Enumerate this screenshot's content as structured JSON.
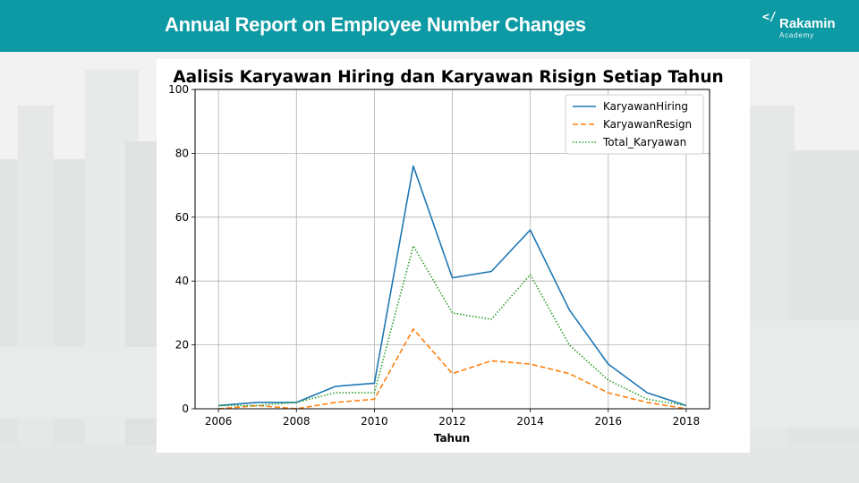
{
  "header": {
    "title": "Annual Report on Employee Number Changes",
    "logo_mark": "</",
    "logo_name": "Rakamin",
    "logo_sub": "Academy"
  },
  "colors": {
    "header_bg": "#0d9aa4",
    "series": [
      "#1f77b4",
      "#ff7f0e",
      "#2ca02c"
    ]
  },
  "chart_data": {
    "type": "line",
    "title": "Aalisis Karyawan Hiring dan Karyawan Risign Setiap Tahun",
    "xlabel": "Tahun",
    "ylabel": "",
    "x": [
      2006,
      2007,
      2008,
      2009,
      2010,
      2011,
      2012,
      2013,
      2014,
      2015,
      2016,
      2017,
      2018
    ],
    "xlim": [
      2005.4,
      2018.6
    ],
    "ylim": [
      0,
      100
    ],
    "xticks": [
      2006,
      2008,
      2010,
      2012,
      2014,
      2016,
      2018
    ],
    "yticks": [
      0,
      20,
      40,
      60,
      80,
      100
    ],
    "grid": true,
    "legend_position": "top-right",
    "series": [
      {
        "name": "KaryawanHiring",
        "style": "solid",
        "color": "#1f77b4",
        "values": [
          1,
          2,
          2,
          7,
          8,
          76,
          41,
          43,
          56,
          31,
          14,
          5,
          1
        ]
      },
      {
        "name": "KaryawanResign",
        "style": "dashed",
        "color": "#ff7f0e",
        "values": [
          0,
          1,
          0,
          2,
          3,
          25,
          11,
          15,
          14,
          11,
          5,
          2,
          0
        ]
      },
      {
        "name": "Total_Karyawan",
        "style": "dotted",
        "color": "#2ca02c",
        "values": [
          1,
          1,
          2,
          5,
          5,
          51,
          30,
          28,
          42,
          20,
          9,
          3,
          1
        ]
      }
    ]
  }
}
